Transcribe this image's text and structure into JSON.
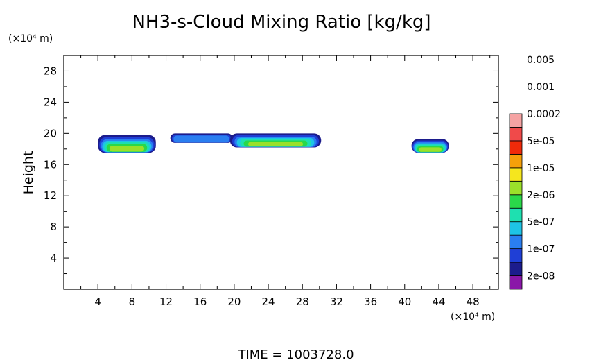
{
  "chart_data": {
    "type": "heatmap",
    "title": "NH3-s-Cloud Mixing Ratio [kg/kg]",
    "ylabel": "Height",
    "x_unit": "(×10⁴ m)",
    "y_unit": "(×10⁴ m)",
    "footer": "TIME =  1003728.0",
    "xlim": [
      0,
      51
    ],
    "ylim": [
      0,
      30
    ],
    "x_ticks": [
      4,
      8,
      12,
      16,
      20,
      24,
      28,
      32,
      36,
      40,
      44,
      48
    ],
    "y_ticks": [
      4,
      8,
      12,
      16,
      20,
      24,
      28
    ],
    "grid": false,
    "colorbar": {
      "placement": "right",
      "colors": [
        "#8a17a8",
        "#1c1c8c",
        "#1f3fd6",
        "#2a7ef0",
        "#1ec4e6",
        "#1ee0b0",
        "#2ad84a",
        "#9be02a",
        "#f5e61e",
        "#f5a00a",
        "#f02a0a",
        "#f04a4a",
        "#f5a3a3"
      ],
      "labels": [
        "2e-08",
        "1e-07",
        "5e-07",
        "2e-06",
        "1e-05",
        "5e-05",
        "0.0002",
        "0.001",
        "0.005"
      ]
    },
    "cloud_regions": [
      {
        "x_range": [
          4.0,
          10.8
        ],
        "y_range": [
          17.5,
          19.8
        ]
      },
      {
        "x_range": [
          12.5,
          19.8
        ],
        "y_range": [
          18.8,
          20.0
        ]
      },
      {
        "x_range": [
          19.5,
          30.2
        ],
        "y_range": [
          18.2,
          20.0
        ]
      },
      {
        "x_range": [
          40.8,
          45.2
        ],
        "y_range": [
          17.5,
          19.3
        ]
      }
    ]
  }
}
